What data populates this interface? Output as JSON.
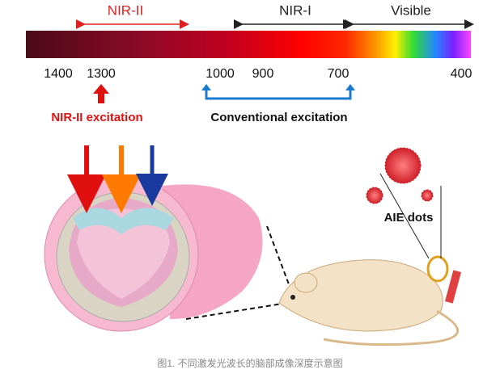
{
  "spectrum": {
    "bands": [
      "NIR-II",
      "NIR-I",
      "Visible"
    ],
    "ticks": [
      "1400",
      "1300",
      "1000",
      "900",
      "700",
      "400"
    ]
  },
  "excitations": [
    "NIR-II excitation",
    "Conventional excitation"
  ],
  "probe": "AIE dots",
  "caption": "图1. 不同激发光波长的脑部成像深度示意图"
}
